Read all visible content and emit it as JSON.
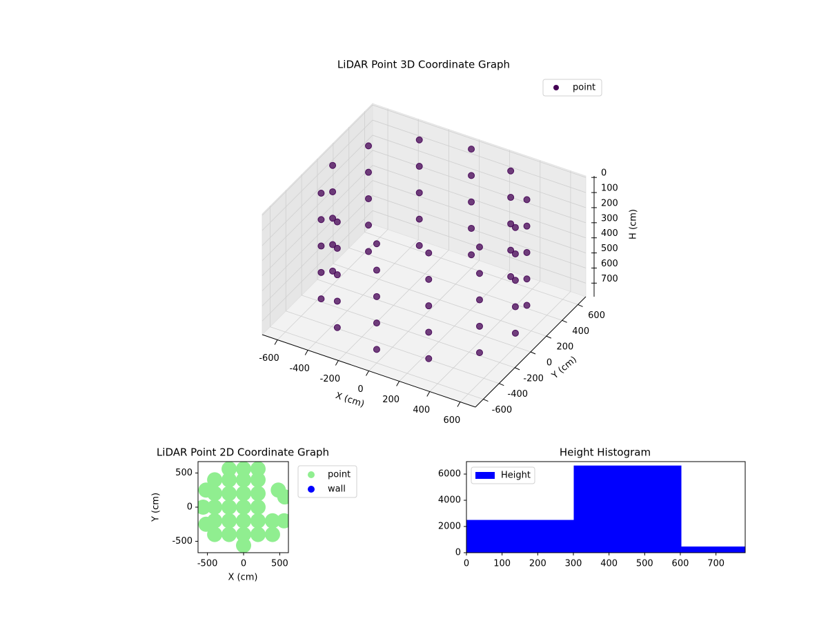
{
  "chart_data": [
    {
      "type": "scatter3d",
      "title": "LiDAR Point 3D Coordinate Graph",
      "x_label": "X (cm)",
      "y_label": "Y (cm)",
      "z_label": "H (cm)",
      "xlim": [
        -700,
        700
      ],
      "ylim": [
        -700,
        700
      ],
      "zlim": [
        -10,
        790
      ],
      "z_inverted": true,
      "grid": true,
      "xticks": [
        -600,
        -400,
        -200,
        0,
        200,
        400,
        600
      ],
      "yticks": [
        -600,
        -400,
        -200,
        0,
        200,
        400,
        600
      ],
      "zticks": [
        0,
        100,
        200,
        300,
        400,
        500,
        600,
        700
      ],
      "series": [
        {
          "name": "point",
          "color": "#440154",
          "x": [
            600,
            520,
            300,
            0,
            -300,
            -520,
            -600,
            -520,
            -300,
            0,
            300,
            520,
            600,
            520,
            300,
            0,
            -300,
            -520,
            -600,
            -520,
            -300,
            0,
            300,
            520,
            600,
            520,
            300,
            0,
            -300,
            -520,
            -600,
            -520,
            -300,
            0,
            300,
            520,
            600,
            520,
            300,
            0,
            -300,
            -520,
            -600,
            -520,
            -300,
            0,
            300,
            520,
            600,
            520,
            300,
            0,
            -300,
            -520,
            -600,
            -520,
            -300,
            0,
            300,
            520
          ],
          "y": [
            0,
            300,
            520,
            600,
            520,
            300,
            0,
            -300,
            -520,
            -600,
            -520,
            -300,
            0,
            300,
            520,
            600,
            520,
            300,
            0,
            -300,
            -520,
            -600,
            -520,
            -300,
            0,
            300,
            520,
            600,
            520,
            300,
            0,
            -300,
            -520,
            -600,
            -520,
            -300,
            0,
            300,
            520,
            600,
            520,
            300,
            0,
            -300,
            -520,
            -600,
            -520,
            -300,
            0,
            300,
            520,
            600,
            520,
            300,
            0,
            -300,
            -520,
            -600,
            -520,
            -300
          ],
          "z": [
            0,
            0,
            0,
            0,
            0,
            0,
            0,
            0,
            0,
            0,
            0,
            0,
            175,
            175,
            175,
            175,
            175,
            175,
            175,
            175,
            175,
            175,
            175,
            175,
            350,
            350,
            350,
            350,
            350,
            350,
            350,
            350,
            350,
            350,
            350,
            350,
            525,
            525,
            525,
            525,
            525,
            525,
            525,
            525,
            525,
            525,
            525,
            525,
            700,
            700,
            700,
            700,
            700,
            700,
            700,
            700,
            700,
            700,
            700,
            700
          ]
        }
      ]
    },
    {
      "type": "scatter",
      "title": "LiDAR Point 2D Coordinate Graph",
      "x_label": "X (cm)",
      "y_label": "Y (cm)",
      "xlim": [
        -630,
        620
      ],
      "ylim": [
        -667,
        667
      ],
      "xticks": [
        -500,
        0,
        500
      ],
      "yticks": [
        -500,
        0,
        500
      ],
      "series": [
        {
          "name": "point",
          "color": "#90ee90",
          "x": [
            -200,
            0,
            200,
            -400,
            -200,
            0,
            200,
            -400,
            -200,
            0,
            200,
            -400,
            -200,
            0,
            200,
            400,
            -200,
            0,
            200,
            -560,
            0,
            0,
            -400,
            -400,
            400,
            -200,
            200,
            480,
            570,
            560,
            -520,
            -520
          ],
          "y": [
            400,
            400,
            400,
            200,
            200,
            200,
            200,
            0,
            0,
            0,
            0,
            -200,
            -200,
            -200,
            -200,
            -200,
            -400,
            -400,
            -400,
            0,
            560,
            -560,
            400,
            -400,
            -400,
            560,
            560,
            250,
            150,
            -200,
            -250,
            250
          ]
        },
        {
          "name": "wall",
          "color": "#0000ff",
          "x": [],
          "y": []
        }
      ]
    },
    {
      "type": "histogram",
      "title": "Height Histogram",
      "name": "Height",
      "color": "#0000ff",
      "bins": [
        0,
        301,
        603,
        782
      ],
      "values": [
        2500,
        6650,
        470
      ],
      "xlim": [
        0,
        782
      ],
      "ylim": [
        0,
        6950
      ],
      "xticks": [
        0,
        100,
        200,
        300,
        400,
        500,
        600,
        700
      ],
      "yticks": [
        0,
        2000,
        4000,
        6000
      ]
    }
  ]
}
